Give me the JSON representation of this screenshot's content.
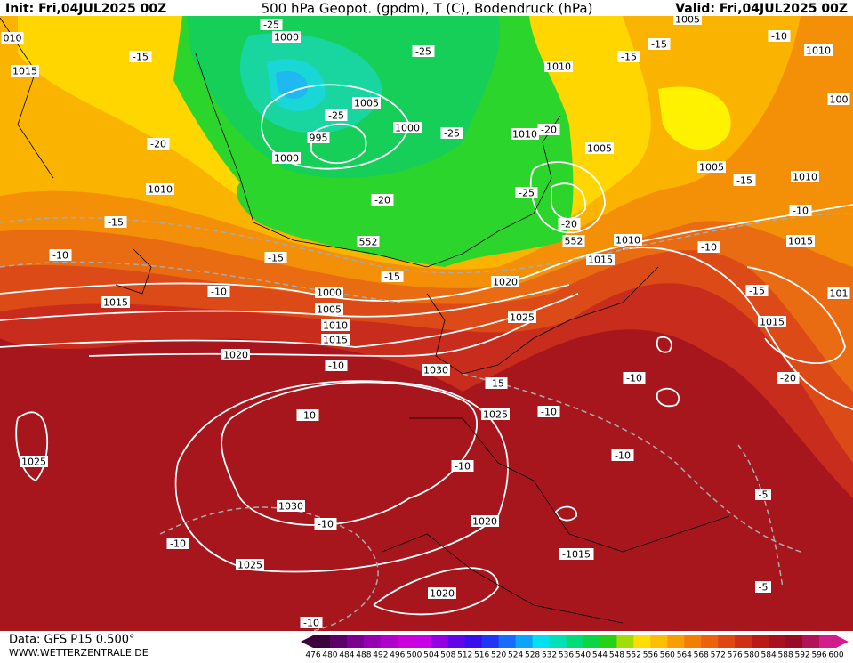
{
  "header": {
    "init": "Init: Fri,04JUL2025 00Z",
    "title": "500 hPa Geopot. (gpdm), T (C), Bodendruck (hPa)",
    "valid": "Valid: Fri,04JUL2025 00Z"
  },
  "footer": {
    "data": "Data: GFS P15 0.500°",
    "site": "WWW.WETTERZENTRALE.DE"
  },
  "colorbar": {
    "labels": [
      "476",
      "480",
      "484",
      "488",
      "492",
      "496",
      "500",
      "504",
      "508",
      "512",
      "516",
      "520",
      "524",
      "528",
      "532",
      "536",
      "540",
      "544",
      "548",
      "552",
      "556",
      "560",
      "564",
      "568",
      "572",
      "576",
      "580",
      "584",
      "588",
      "592",
      "596",
      "600"
    ]
  },
  "map": {
    "labels": [
      "1015",
      "1000",
      "-25",
      "-15",
      "-20",
      "1010",
      "-15",
      "-10",
      "1015",
      "-15",
      "-10",
      "1000",
      "1005",
      "1010",
      "1015",
      "1020",
      "-10",
      "1030",
      "-15",
      "1025",
      "-10",
      "-10",
      "1025",
      "-10",
      "1030",
      "-10",
      "1020",
      "-10",
      "1025",
      "-1015",
      "1020",
      "-10",
      "-5",
      "-5",
      "-10",
      "-10",
      "-20",
      "1015",
      "-15",
      "1015",
      "-10",
      "1010",
      "-15",
      "1005",
      "1010",
      "-10",
      "1005",
      "-15",
      "-15",
      "1010",
      "1005",
      "995",
      "-25",
      "1000",
      "-25",
      "1000",
      "-20",
      "552",
      "1010",
      "-20",
      "1005",
      "-25",
      "-20",
      "552",
      "1010",
      "1015",
      "1020",
      "1025",
      "-25",
      "-15",
      "-10",
      "010",
      "100",
      "101"
    ]
  }
}
